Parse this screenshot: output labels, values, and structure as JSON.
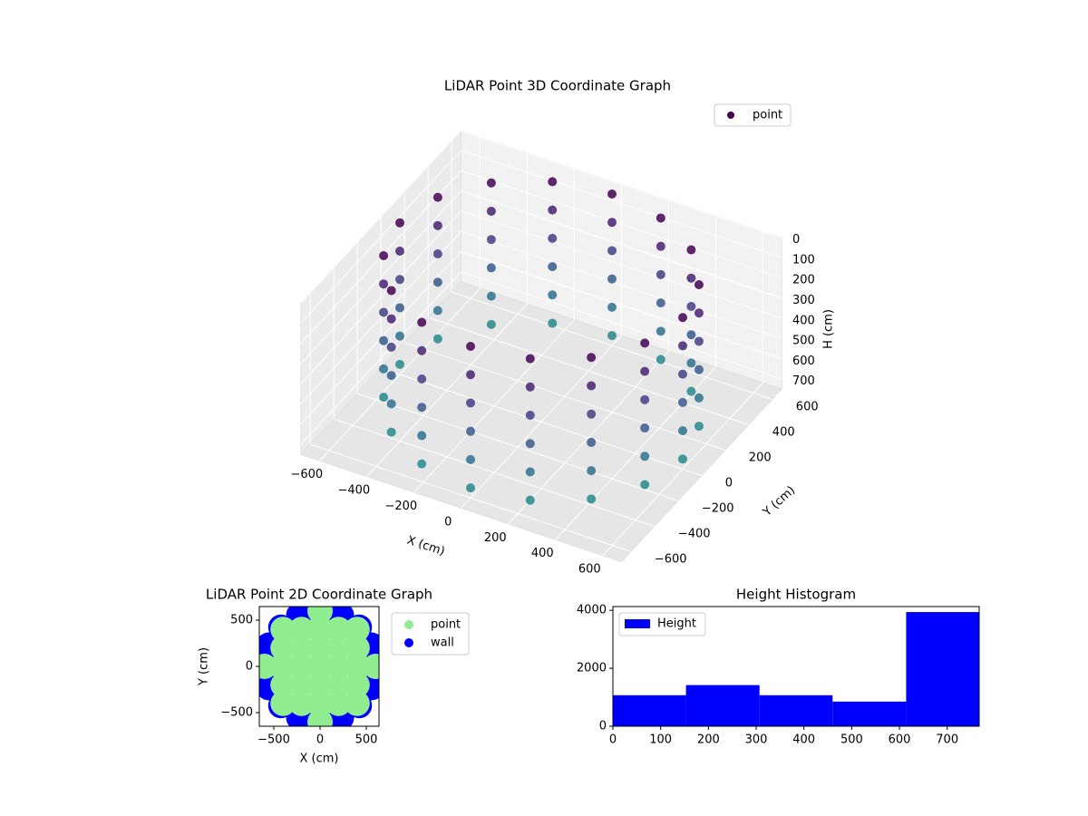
{
  "chart_data": [
    {
      "type": "scatter3d",
      "title": "LiDAR Point 3D Coordinate Graph",
      "xlabel": "X (cm)",
      "ylabel": "Y (cm)",
      "zlabel": "H (cm)",
      "xlim": [
        -680,
        680
      ],
      "ylim": [
        -680,
        680
      ],
      "zlim": [
        0,
        750
      ],
      "zinvert": true,
      "xticks": [
        {
          "value": -600,
          "label": "−600"
        },
        {
          "value": -400,
          "label": "−400"
        },
        {
          "value": -200,
          "label": "−200"
        },
        0,
        200,
        400,
        600
      ],
      "yticks": [
        {
          "value": -600,
          "label": "−600"
        },
        {
          "value": -400,
          "label": "−400"
        },
        {
          "value": -200,
          "label": "−200"
        },
        0,
        200,
        400,
        600
      ],
      "zticks": [
        0,
        100,
        200,
        300,
        400,
        500,
        600,
        700
      ],
      "colormap": "viridis",
      "legend": "upper right",
      "grid": true,
      "series": [
        {
          "name": "point",
          "color": "#440154",
          "x": [
            600,
            554,
            424,
            230,
            0,
            -230,
            -424,
            -554,
            -600,
            -554,
            -424,
            -230,
            0,
            230,
            424,
            554,
            600,
            554,
            424,
            230,
            0,
            -230,
            -424,
            -554,
            -600,
            -554,
            -424,
            -230,
            0,
            230,
            424,
            554,
            600,
            554,
            424,
            230,
            0,
            -230,
            -424,
            -554,
            -600,
            -554,
            -424,
            -230,
            0,
            230,
            424,
            554,
            600,
            554,
            424,
            230,
            0,
            -230,
            -424,
            -554,
            -600,
            -554,
            -424,
            -230,
            0,
            230,
            424,
            554,
            600,
            554,
            424,
            230,
            0,
            -230,
            -424,
            -554,
            -600,
            -554,
            -424,
            -230,
            0,
            230,
            424,
            554,
            600,
            554,
            424,
            230,
            0,
            -230,
            -424,
            -554,
            -600,
            -554,
            -424,
            -230,
            0,
            230,
            424,
            554
          ],
          "y": [
            0,
            230,
            424,
            554,
            600,
            554,
            424,
            230,
            0,
            -230,
            -424,
            -554,
            -600,
            -554,
            -424,
            -230,
            0,
            230,
            424,
            554,
            600,
            554,
            424,
            230,
            0,
            -230,
            -424,
            -554,
            -600,
            -554,
            -424,
            -230,
            0,
            230,
            424,
            554,
            600,
            554,
            424,
            230,
            0,
            -230,
            -424,
            -554,
            -600,
            -554,
            -424,
            -230,
            0,
            230,
            424,
            554,
            600,
            554,
            424,
            230,
            0,
            -230,
            -424,
            -554,
            -600,
            -554,
            -424,
            -230,
            0,
            230,
            424,
            554,
            600,
            554,
            424,
            230,
            0,
            -230,
            -424,
            -554,
            -600,
            -554,
            -424,
            -230,
            0,
            230,
            424,
            554,
            600,
            554,
            424,
            230,
            0,
            -230,
            -424,
            -554,
            -600,
            -554,
            -424,
            -230
          ],
          "z": [
            0,
            0,
            0,
            0,
            0,
            0,
            0,
            0,
            0,
            0,
            0,
            0,
            0,
            0,
            0,
            0,
            140,
            140,
            140,
            140,
            140,
            140,
            140,
            140,
            140,
            140,
            140,
            140,
            140,
            140,
            140,
            140,
            280,
            280,
            280,
            280,
            280,
            280,
            280,
            280,
            280,
            280,
            280,
            280,
            280,
            280,
            280,
            280,
            420,
            420,
            420,
            420,
            420,
            420,
            420,
            420,
            420,
            420,
            420,
            420,
            420,
            420,
            420,
            420,
            560,
            560,
            560,
            560,
            560,
            560,
            560,
            560,
            560,
            560,
            560,
            560,
            560,
            560,
            560,
            560,
            700,
            700,
            700,
            700,
            700,
            700,
            700,
            700,
            700,
            700,
            700,
            700,
            700,
            700,
            700,
            700
          ]
        }
      ]
    },
    {
      "type": "scatter",
      "title": "LiDAR Point 2D Coordinate Graph",
      "xlabel": "X (cm)",
      "ylabel": "Y (cm)",
      "xlim": [
        -657,
        637
      ],
      "ylim": [
        -647,
        647
      ],
      "xticks": [
        {
          "value": -500,
          "label": "−500"
        },
        0,
        500
      ],
      "yticks": [
        {
          "value": -500,
          "label": "−500"
        },
        0,
        500
      ],
      "legend": "outside right",
      "series": [
        {
          "name": "point",
          "color": "#90ee90",
          "x": [
            -600,
            -400,
            -400,
            -400,
            -400,
            -400,
            -200,
            -200,
            -200,
            -200,
            -200,
            0,
            0,
            0,
            0,
            0,
            0,
            0,
            200,
            200,
            200,
            200,
            200,
            400,
            400,
            400,
            400,
            400,
            600
          ],
          "y": [
            0,
            -400,
            -200,
            0,
            200,
            400,
            -400,
            -200,
            0,
            200,
            400,
            -600,
            -400,
            -200,
            0,
            200,
            400,
            600,
            -400,
            -200,
            0,
            200,
            400,
            -400,
            -200,
            0,
            200,
            400,
            0
          ]
        },
        {
          "name": "wall",
          "color": "#0000ff",
          "x": [
            600,
            554,
            424,
            230,
            0,
            -230,
            -424,
            -554,
            -600,
            -554,
            -424,
            -230,
            0,
            230,
            424,
            554
          ],
          "y": [
            0,
            230,
            424,
            554,
            600,
            554,
            424,
            230,
            0,
            -230,
            -424,
            -554,
            -600,
            -554,
            -424,
            -230
          ]
        }
      ]
    },
    {
      "type": "histogram",
      "title": "Height Histogram",
      "legend": "upper left",
      "series": [
        {
          "name": "Height",
          "color": "#0000ff",
          "bins": [
            0,
            153,
            307,
            460,
            614,
            767
          ],
          "values": [
            1070,
            1420,
            1070,
            850,
            3940
          ]
        }
      ],
      "xlim": [
        0,
        767
      ],
      "ylim": [
        0,
        4130
      ],
      "xticks": [
        0,
        100,
        200,
        300,
        400,
        500,
        600,
        700
      ],
      "yticks": [
        0,
        2000,
        4000
      ]
    }
  ]
}
